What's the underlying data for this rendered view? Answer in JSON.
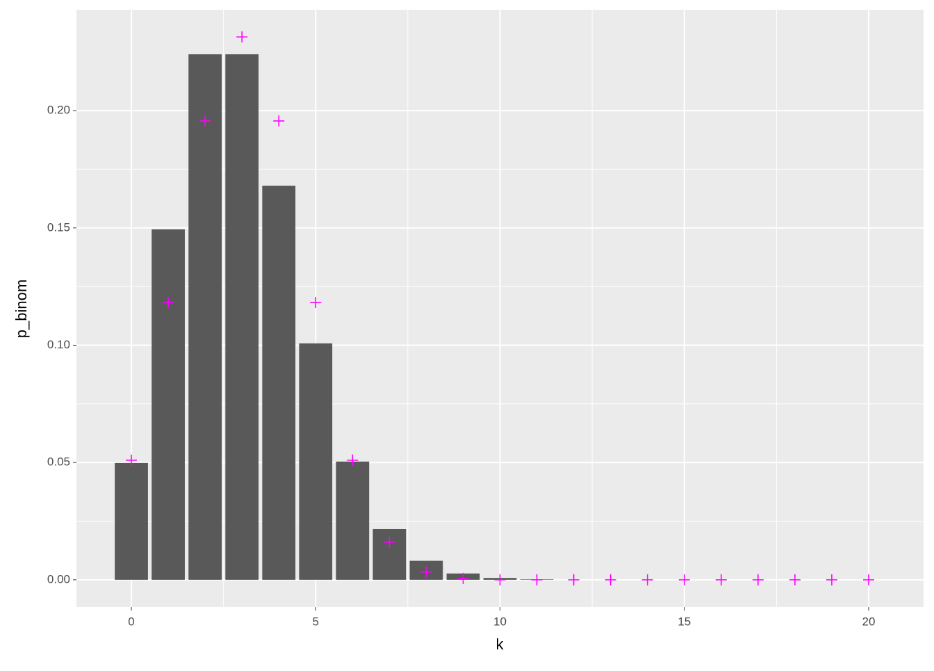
{
  "chart_data": {
    "type": "bar",
    "x_label": "k",
    "y_label": "p_binom",
    "x": [
      0,
      1,
      2,
      3,
      4,
      5,
      6,
      7,
      8,
      9,
      10,
      11,
      12,
      13,
      14,
      15,
      16,
      17,
      18,
      19,
      20
    ],
    "series": [
      {
        "type": "bar",
        "color": "#595959",
        "values": [
          0.0498,
          0.1494,
          0.224,
          0.224,
          0.168,
          0.1008,
          0.0504,
          0.0216,
          0.0081,
          0.0027,
          0.0008,
          0.0002,
          0,
          0,
          0,
          0,
          0,
          0,
          0,
          0,
          0
        ]
      },
      {
        "type": "point",
        "marker": "+",
        "color": "#ff00ff",
        "values": [
          0.051,
          0.1182,
          0.1956,
          0.2314,
          0.1956,
          0.1182,
          0.051,
          0.016,
          0.0033,
          0.0006,
          0,
          0,
          0,
          0,
          0,
          0,
          0,
          0,
          0,
          0,
          0
        ]
      }
    ],
    "xlim": [
      -1.49,
      21.49
    ],
    "ylim": [
      -0.0116,
      0.243
    ],
    "xticks": [
      0,
      5,
      10,
      15,
      20
    ],
    "yticks": [
      {
        "value": 0,
        "label": "0.00"
      },
      {
        "value": 0.05,
        "label": "0.05"
      },
      {
        "value": 0.1,
        "label": "0.10"
      },
      {
        "value": 0.15,
        "label": "0.15"
      },
      {
        "value": 0.2,
        "label": "0.20"
      }
    ],
    "grid": true
  }
}
